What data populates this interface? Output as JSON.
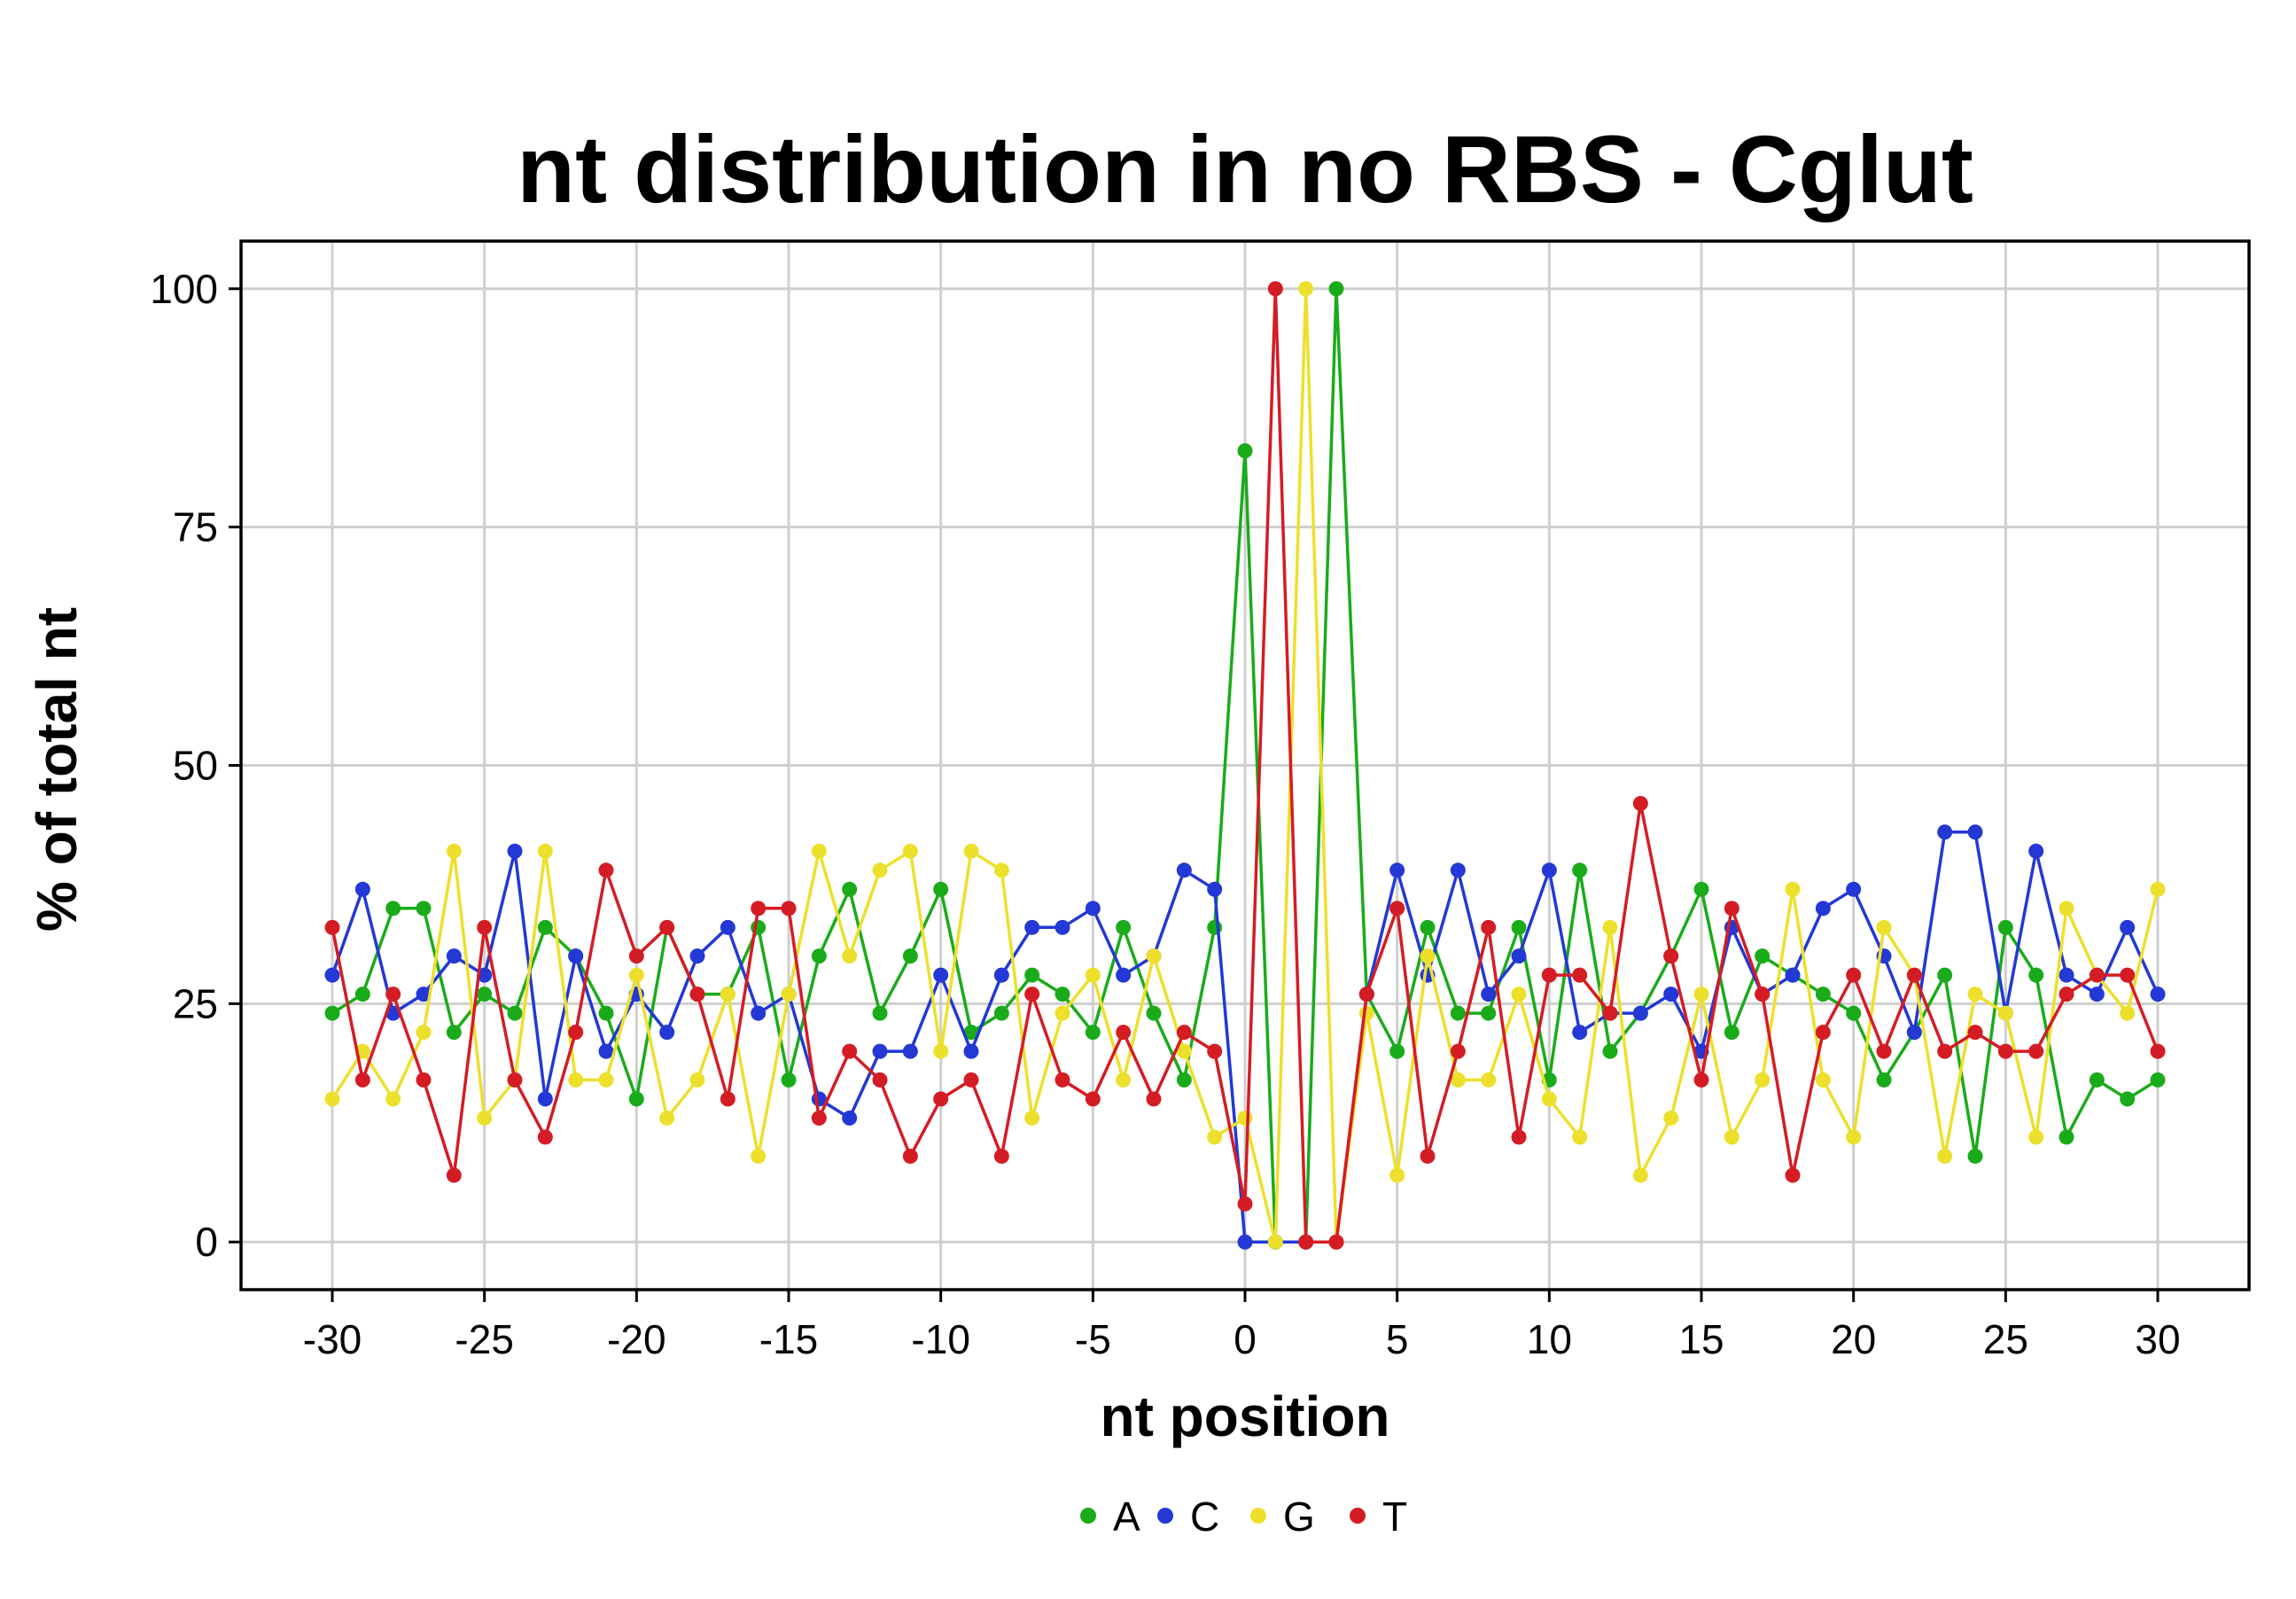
{
  "chart_data": {
    "type": "line",
    "title": "nt distribution in no RBS - Cglut",
    "xlabel": "nt position",
    "ylabel": "% of total nt",
    "xlim": [
      -33,
      33
    ],
    "ylim": [
      -5,
      105
    ],
    "x_ticks": [
      "-30",
      "-25",
      "-20",
      "-15",
      "-10",
      "-5",
      "0",
      "5",
      "10",
      "15",
      "20",
      "25",
      "30"
    ],
    "y_ticks": [
      "0",
      "25",
      "50",
      "75",
      "100"
    ],
    "grid": true,
    "legend_position": "bottom",
    "x": [
      -30,
      -29,
      -28,
      -27,
      -26,
      -25,
      -24,
      -23,
      -22,
      -21,
      -20,
      -19,
      -18,
      -17,
      -16,
      -15,
      -14,
      -13,
      -12,
      -11,
      -10,
      -9,
      -8,
      -7,
      -6,
      -5,
      -4,
      -3,
      -2,
      -1,
      0,
      1,
      2,
      3,
      4,
      5,
      6,
      7,
      8,
      9,
      10,
      11,
      12,
      13,
      14,
      15,
      16,
      17,
      18,
      19,
      20,
      21,
      22,
      23,
      24,
      25,
      26,
      27,
      28,
      29,
      30
    ],
    "series": [
      {
        "name": "A",
        "color": "#1aab1a",
        "values": [
          24,
          26,
          35,
          35,
          22,
          26,
          24,
          33,
          30,
          24,
          15,
          33,
          26,
          26,
          33,
          17,
          30,
          37,
          24,
          30,
          37,
          22,
          24,
          28,
          26,
          22,
          33,
          24,
          17,
          33,
          83,
          0,
          0,
          100,
          26,
          20,
          33,
          24,
          24,
          33,
          17,
          39,
          20,
          24,
          30,
          37,
          22,
          30,
          28,
          26,
          24,
          17,
          22,
          28,
          9,
          33,
          28,
          11,
          17,
          15,
          17
        ]
      },
      {
        "name": "C",
        "color": "#2338d4",
        "values": [
          28,
          37,
          24,
          26,
          30,
          28,
          41,
          15,
          30,
          20,
          26,
          22,
          30,
          33,
          24,
          26,
          15,
          13,
          20,
          20,
          28,
          20,
          28,
          33,
          33,
          35,
          28,
          30,
          39,
          37,
          0,
          0,
          0,
          0,
          26,
          39,
          28,
          39,
          26,
          30,
          39,
          22,
          24,
          24,
          26,
          20,
          33,
          26,
          28,
          35,
          37,
          30,
          22,
          43,
          43,
          24,
          41,
          28,
          26,
          33,
          26
        ]
      },
      {
        "name": "G",
        "color": "#ece02c",
        "values": [
          15,
          20,
          15,
          22,
          41,
          13,
          17,
          41,
          17,
          17,
          28,
          13,
          17,
          26,
          9,
          26,
          41,
          30,
          39,
          41,
          20,
          41,
          39,
          13,
          24,
          28,
          17,
          30,
          20,
          11,
          13,
          0,
          100,
          0,
          24,
          7,
          30,
          17,
          17,
          26,
          15,
          11,
          33,
          7,
          13,
          26,
          11,
          17,
          37,
          17,
          11,
          33,
          28,
          9,
          26,
          24,
          11,
          35,
          28,
          24,
          37
        ]
      },
      {
        "name": "T",
        "color": "#d41c24",
        "values": [
          33,
          17,
          26,
          17,
          7,
          33,
          17,
          11,
          22,
          39,
          30,
          33,
          26,
          15,
          35,
          35,
          13,
          20,
          17,
          9,
          15,
          17,
          9,
          26,
          17,
          15,
          22,
          15,
          22,
          20,
          4,
          100,
          0,
          0,
          26,
          35,
          9,
          20,
          33,
          11,
          28,
          28,
          24,
          46,
          30,
          17,
          35,
          26,
          7,
          22,
          28,
          20,
          28,
          20,
          22,
          20,
          20,
          26,
          28,
          28,
          20
        ]
      }
    ]
  }
}
